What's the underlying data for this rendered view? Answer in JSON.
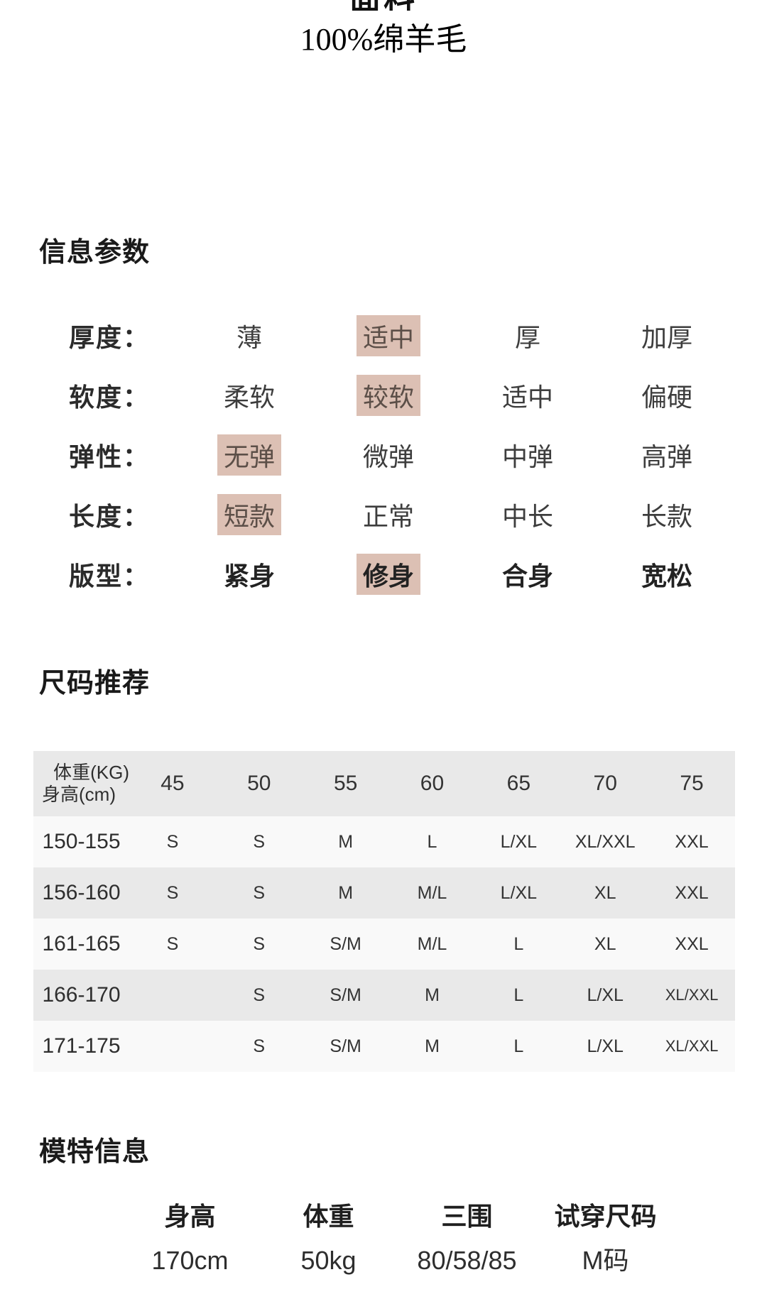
{
  "header": {
    "clipped_title": "面料",
    "subtitle": "100%绵羊毛"
  },
  "info_params": {
    "heading": "信息参数",
    "rows": [
      {
        "label": "厚度：",
        "options": [
          "薄",
          "适中",
          "厚",
          "加厚"
        ],
        "selected": 1,
        "bold": false
      },
      {
        "label": "软度：",
        "options": [
          "柔软",
          "较软",
          "适中",
          "偏硬"
        ],
        "selected": 1,
        "bold": false
      },
      {
        "label": "弹性：",
        "options": [
          "无弹",
          "微弹",
          "中弹",
          "高弹"
        ],
        "selected": 0,
        "bold": false
      },
      {
        "label": "长度：",
        "options": [
          "短款",
          "正常",
          "中长",
          "长款"
        ],
        "selected": 0,
        "bold": false
      },
      {
        "label": "版型：",
        "options": [
          "紧身",
          "修身",
          "合身",
          "宽松"
        ],
        "selected": 1,
        "bold": true
      }
    ]
  },
  "size_table": {
    "heading": "尺码推荐",
    "corner": [
      "体重(KG)",
      "身高(cm)"
    ],
    "weight_columns": [
      "45",
      "50",
      "55",
      "60",
      "65",
      "70",
      "75"
    ],
    "rows": [
      {
        "height": "150-155",
        "sizes": [
          "S",
          "S",
          "M",
          "L",
          "L/XL",
          "XL/XXL",
          "XXL"
        ]
      },
      {
        "height": "156-160",
        "sizes": [
          "S",
          "S",
          "M",
          "M/L",
          "L/XL",
          "XL",
          "XXL"
        ]
      },
      {
        "height": "161-165",
        "sizes": [
          "S",
          "S",
          "S/M",
          "M/L",
          "L",
          "XL",
          "XXL"
        ]
      },
      {
        "height": "166-170",
        "sizes": [
          "",
          "S",
          "S/M",
          "M",
          "L",
          "L/XL",
          "XL/XXL"
        ]
      },
      {
        "height": "171-175",
        "sizes": [
          "",
          "S",
          "S/M",
          "M",
          "L",
          "L/XL",
          "XL/XXL"
        ]
      }
    ]
  },
  "model_info": {
    "heading": "模特信息",
    "columns": [
      {
        "label": "身高",
        "value": "170cm"
      },
      {
        "label": "体重",
        "value": "50kg"
      },
      {
        "label": "三围",
        "value": "80/58/85"
      },
      {
        "label": "试穿尺码",
        "value": "M码"
      }
    ]
  },
  "colors": {
    "highlight_bg": "#dcc0b4",
    "highlight_text": "#5c4f48",
    "table_header_bg": "#e9e9e9",
    "table_row_light_bg": "#f9f9f9",
    "table_row_dark_bg": "#e9e9e9",
    "text_main": "#333333"
  }
}
